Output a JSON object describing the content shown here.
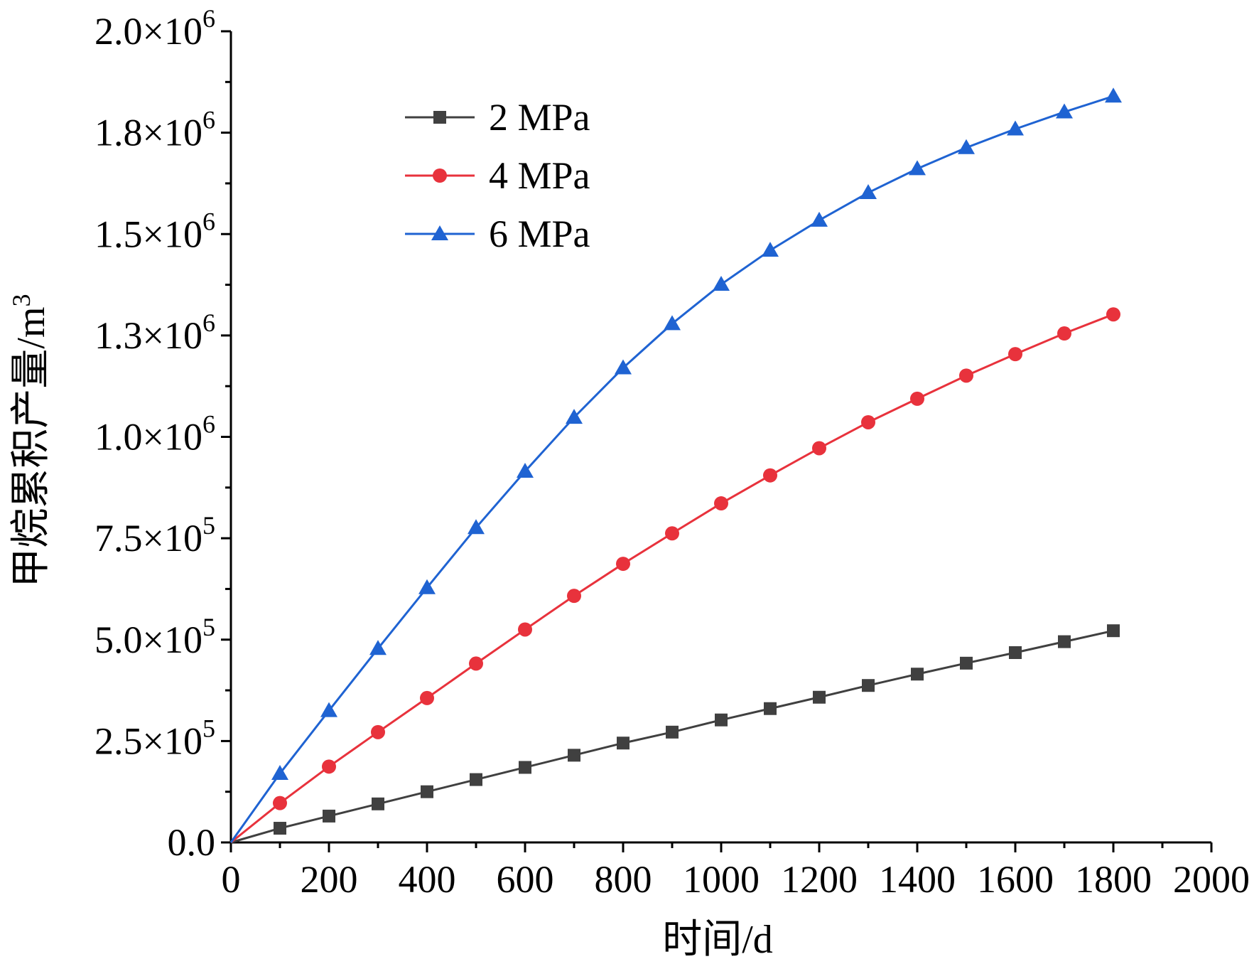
{
  "chart_data": {
    "type": "line",
    "title": "",
    "xlabel": "时间/d",
    "ylabel": "甲烷累积产量/m",
    "ylabel_superscript": "3",
    "xlim": [
      0,
      2000
    ],
    "ylim": [
      0,
      2000000
    ],
    "x_ticks": [
      0,
      200,
      400,
      600,
      800,
      1000,
      1200,
      1400,
      1600,
      1800,
      2000
    ],
    "x_tick_labels": [
      "0",
      "200",
      "400",
      "600",
      "800",
      "1000",
      "1200",
      "1400",
      "1600",
      "1800",
      "2000"
    ],
    "y_ticks": [
      0,
      250000,
      500000,
      750000,
      1000000,
      1250000,
      1500000,
      1750000,
      2000000
    ],
    "y_tick_labels": [
      {
        "mantissa": "0.0",
        "exponent": ""
      },
      {
        "mantissa": "2.5×10",
        "exponent": "5"
      },
      {
        "mantissa": "5.0×10",
        "exponent": "5"
      },
      {
        "mantissa": "7.5×10",
        "exponent": "5"
      },
      {
        "mantissa": "1.0×10",
        "exponent": "6"
      },
      {
        "mantissa": "1.3×10",
        "exponent": "6"
      },
      {
        "mantissa": "1.5×10",
        "exponent": "6"
      },
      {
        "mantissa": "1.8×10",
        "exponent": "6"
      },
      {
        "mantissa": "2.0×10",
        "exponent": "6"
      }
    ],
    "legend_position": "top-left",
    "x": [
      0,
      100,
      200,
      300,
      400,
      500,
      600,
      700,
      800,
      900,
      1000,
      1100,
      1200,
      1300,
      1400,
      1500,
      1600,
      1700,
      1800
    ],
    "series": [
      {
        "name": "2 MPa",
        "color": "#404040",
        "marker": "square",
        "values": [
          0,
          35000,
          65000,
          95000,
          125000,
          155000,
          185000,
          215000,
          245000,
          272000,
          302000,
          330000,
          358000,
          387000,
          415000,
          442000,
          468000,
          495000,
          522000
        ]
      },
      {
        "name": "4 MPa",
        "color": "#e8323c",
        "marker": "circle",
        "values": [
          0,
          97000,
          187000,
          272000,
          356000,
          441000,
          525000,
          608000,
          687000,
          762000,
          836000,
          905000,
          972000,
          1036000,
          1094000,
          1151000,
          1204000,
          1255000,
          1302000
        ]
      },
      {
        "name": "6 MPa",
        "color": "#1f63d2",
        "marker": "triangle",
        "values": [
          0,
          170000,
          325000,
          478000,
          628000,
          776000,
          915000,
          1048000,
          1170000,
          1279000,
          1376000,
          1460000,
          1534000,
          1602000,
          1661000,
          1713000,
          1759000,
          1801000,
          1840000
        ]
      }
    ]
  }
}
